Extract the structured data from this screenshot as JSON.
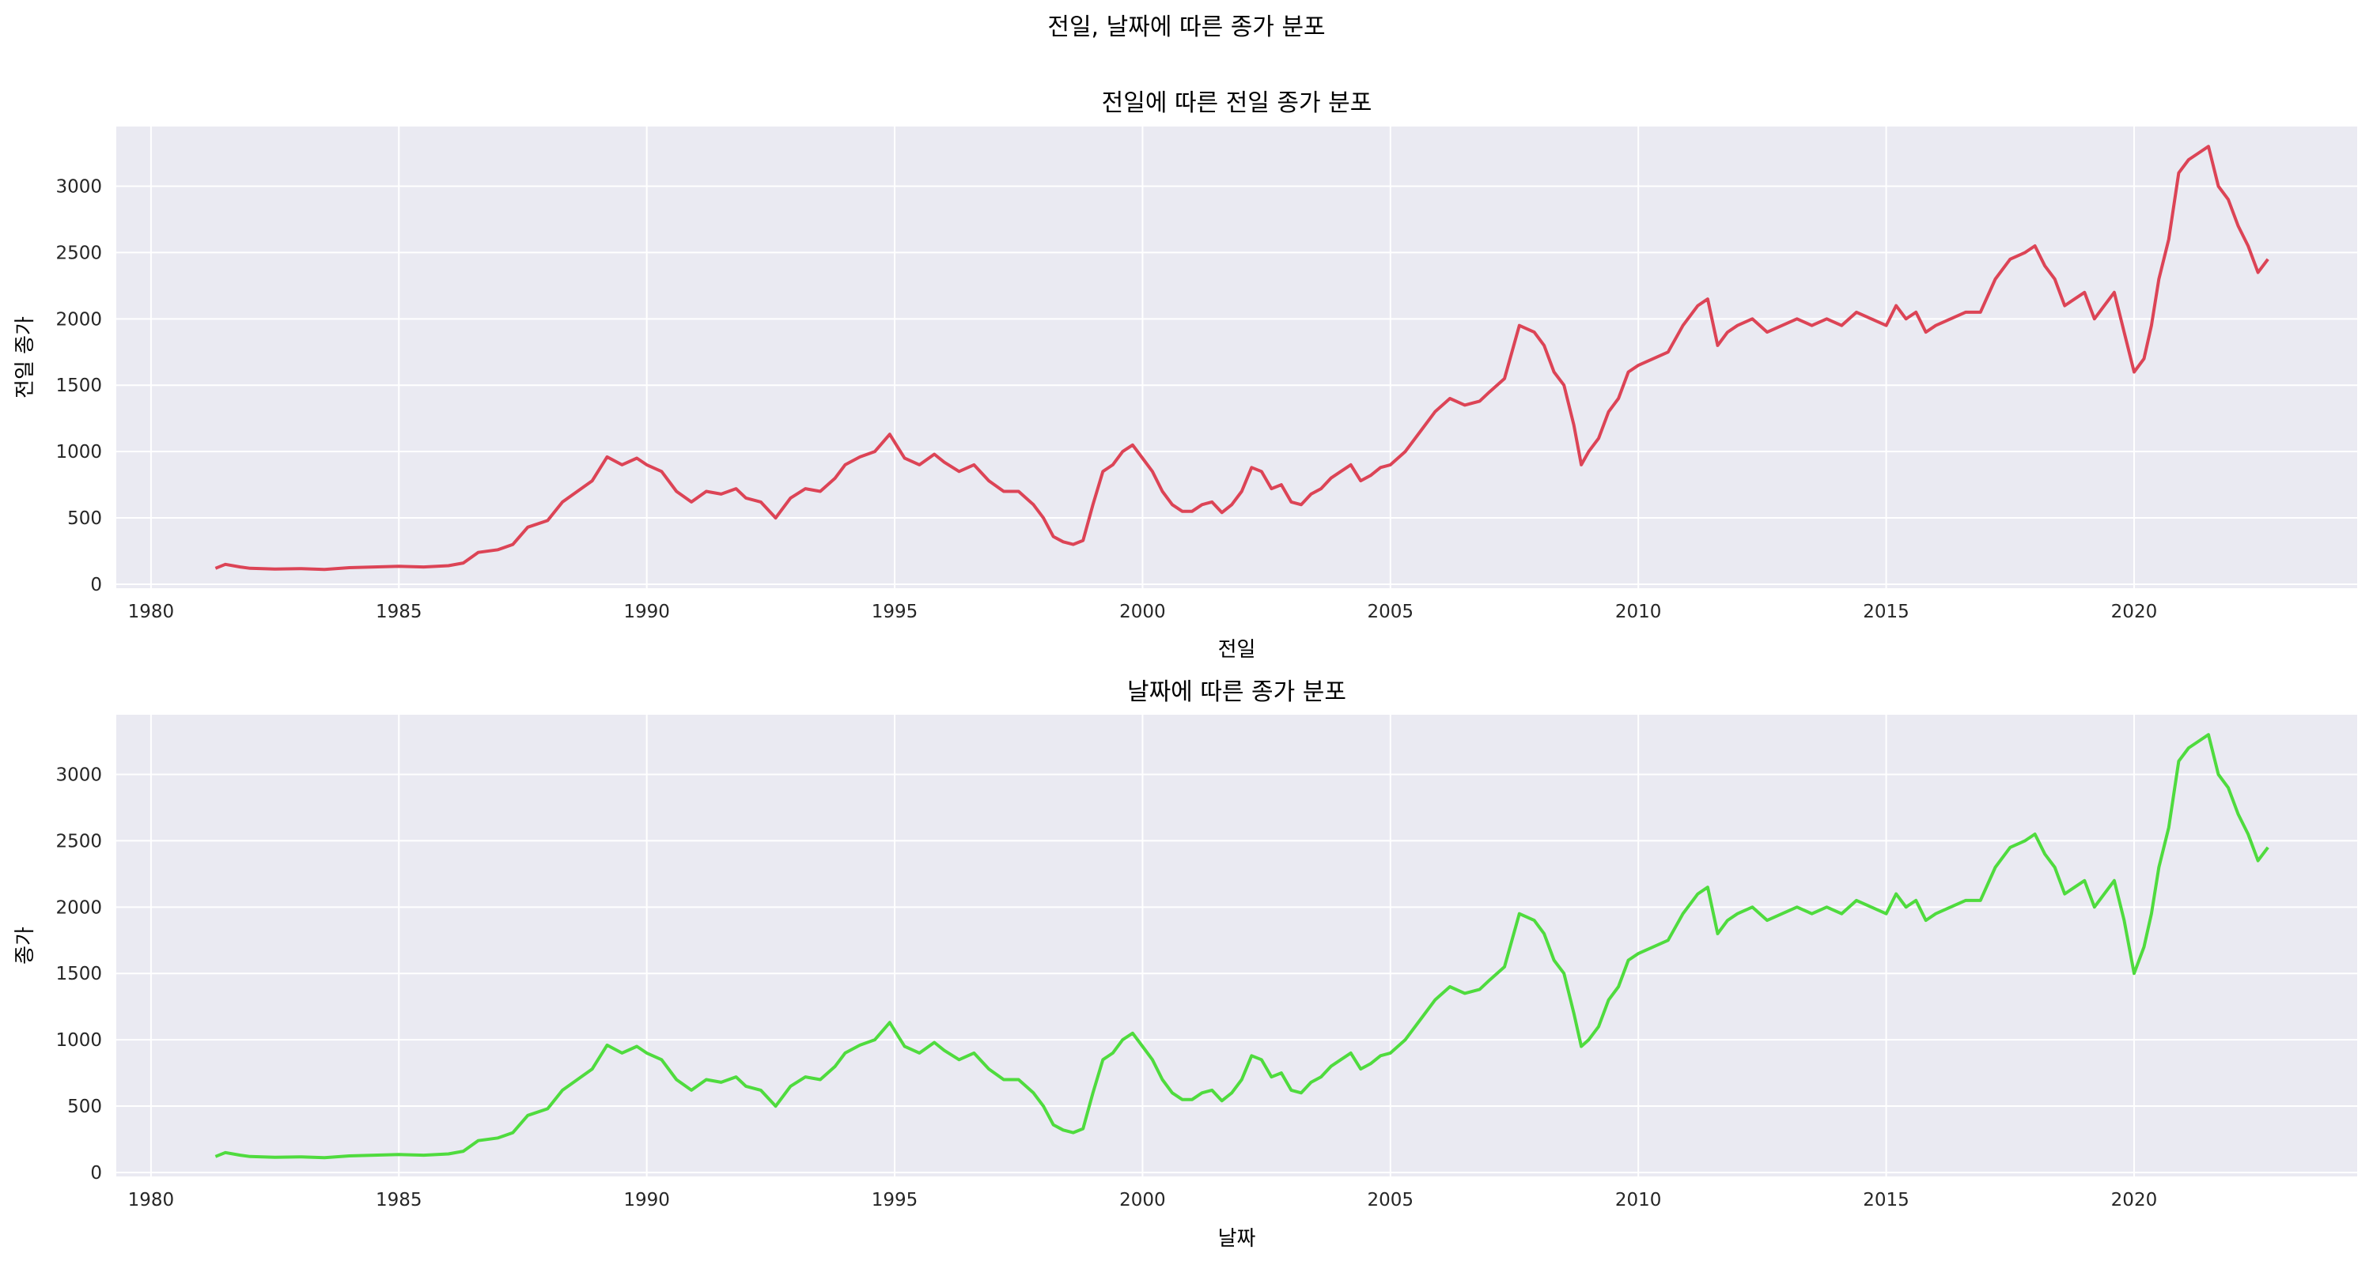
{
  "suptitle": "전일, 날짜에 따른 종가 분포",
  "chart_data": [
    {
      "type": "line",
      "title": "전일에 따른 전일 종가 분포",
      "xlabel": "전일",
      "ylabel": "전일 종가",
      "xlim": [
        1979.3,
        2024.5
      ],
      "ylim": [
        -30,
        3450
      ],
      "xticks": [
        1980,
        1985,
        1990,
        1995,
        2000,
        2005,
        2010,
        2015,
        2020
      ],
      "xtick_labels": [
        "1980",
        "1985",
        "1990",
        "1995",
        "2000",
        "2005",
        "2010",
        "2015",
        "2020"
      ],
      "yticks": [
        0,
        500,
        1000,
        1500,
        2000,
        2500,
        3000
      ],
      "ytick_labels": [
        "0",
        "500",
        "1000",
        "1500",
        "2000",
        "2500",
        "3000"
      ],
      "grid": true,
      "series": [
        {
          "color": "#dc4456",
          "x": [
            1981.3,
            1981.5,
            1981.8,
            1982.0,
            1982.5,
            1983.0,
            1983.5,
            1984.0,
            1984.5,
            1985.0,
            1985.5,
            1986.0,
            1986.3,
            1986.6,
            1987.0,
            1987.3,
            1987.6,
            1988.0,
            1988.3,
            1988.6,
            1988.9,
            1989.2,
            1989.5,
            1989.8,
            1990.0,
            1990.3,
            1990.6,
            1990.9,
            1991.2,
            1991.5,
            1991.8,
            1992.0,
            1992.3,
            1992.6,
            1992.9,
            1993.2,
            1993.5,
            1993.8,
            1994.0,
            1994.3,
            1994.6,
            1994.9,
            1995.2,
            1995.5,
            1995.8,
            1996.0,
            1996.3,
            1996.6,
            1996.9,
            1997.2,
            1997.5,
            1997.8,
            1998.0,
            1998.2,
            1998.4,
            1998.6,
            1998.8,
            1999.0,
            1999.2,
            1999.4,
            1999.6,
            1999.8,
            2000.0,
            2000.2,
            2000.4,
            2000.6,
            2000.8,
            2001.0,
            2001.2,
            2001.4,
            2001.6,
            2001.8,
            2002.0,
            2002.2,
            2002.4,
            2002.6,
            2002.8,
            2003.0,
            2003.2,
            2003.4,
            2003.6,
            2003.8,
            2004.0,
            2004.2,
            2004.4,
            2004.6,
            2004.8,
            2005.0,
            2005.3,
            2005.6,
            2005.9,
            2006.2,
            2006.5,
            2006.8,
            2007.0,
            2007.3,
            2007.6,
            2007.9,
            2008.1,
            2008.3,
            2008.5,
            2008.7,
            2008.85,
            2009.0,
            2009.2,
            2009.4,
            2009.6,
            2009.8,
            2010.0,
            2010.3,
            2010.6,
            2010.9,
            2011.2,
            2011.4,
            2011.6,
            2011.8,
            2012.0,
            2012.3,
            2012.6,
            2012.9,
            2013.2,
            2013.5,
            2013.8,
            2014.1,
            2014.4,
            2014.7,
            2015.0,
            2015.2,
            2015.4,
            2015.6,
            2015.8,
            2016.0,
            2016.3,
            2016.6,
            2016.9,
            2017.2,
            2017.5,
            2017.8,
            2018.0,
            2018.2,
            2018.4,
            2018.6,
            2018.8,
            2019.0,
            2019.2,
            2019.4,
            2019.6,
            2019.8,
            2020.0,
            2020.2,
            2020.35,
            2020.5,
            2020.7,
            2020.9,
            2021.1,
            2021.3,
            2021.5,
            2021.7,
            2021.9,
            2022.1,
            2022.3,
            2022.5,
            2022.7
          ],
          "y": [
            120,
            150,
            130,
            120,
            115,
            118,
            112,
            125,
            130,
            135,
            130,
            140,
            160,
            240,
            260,
            300,
            430,
            480,
            620,
            700,
            780,
            960,
            900,
            950,
            900,
            850,
            700,
            620,
            700,
            680,
            720,
            650,
            620,
            500,
            650,
            720,
            700,
            800,
            900,
            960,
            1000,
            1130,
            950,
            900,
            980,
            920,
            850,
            900,
            780,
            700,
            700,
            600,
            500,
            360,
            320,
            300,
            330,
            600,
            850,
            900,
            1000,
            1050,
            950,
            850,
            700,
            600,
            550,
            550,
            600,
            620,
            540,
            600,
            700,
            880,
            850,
            720,
            750,
            620,
            600,
            680,
            720,
            800,
            850,
            900,
            780,
            820,
            880,
            900,
            1000,
            1150,
            1300,
            1400,
            1350,
            1380,
            1450,
            1550,
            1950,
            1900,
            1800,
            1600,
            1500,
            1200,
            900,
            1000,
            1100,
            1300,
            1400,
            1600,
            1650,
            1700,
            1750,
            1950,
            2100,
            2150,
            1800,
            1900,
            1950,
            2000,
            1900,
            1950,
            2000,
            1950,
            2000,
            1950,
            2050,
            2000,
            1950,
            2100,
            2000,
            2050,
            1900,
            1950,
            2000,
            2050,
            2050,
            2300,
            2450,
            2500,
            2550,
            2400,
            2300,
            2100,
            2150,
            2200,
            2000,
            2100,
            2200,
            1900,
            1600,
            1700,
            1950,
            2300,
            2600,
            3100,
            3200,
            3250,
            3300,
            3000,
            2900,
            2700,
            2550,
            2350,
            2450
          ]
        }
      ]
    },
    {
      "type": "line",
      "title": "날짜에 따른 종가 분포",
      "xlabel": "날짜",
      "ylabel": "종가",
      "xlim": [
        1979.3,
        2024.5
      ],
      "ylim": [
        -30,
        3450
      ],
      "xticks": [
        1980,
        1985,
        1990,
        1995,
        2000,
        2005,
        2010,
        2015,
        2020
      ],
      "xtick_labels": [
        "1980",
        "1985",
        "1990",
        "1995",
        "2000",
        "2005",
        "2010",
        "2015",
        "2020"
      ],
      "yticks": [
        0,
        500,
        1000,
        1500,
        2000,
        2500,
        3000
      ],
      "ytick_labels": [
        "0",
        "500",
        "1000",
        "1500",
        "2000",
        "2500",
        "3000"
      ],
      "grid": true,
      "series": [
        {
          "color": "#4fdb3e",
          "x": [
            1981.3,
            1981.5,
            1981.8,
            1982.0,
            1982.5,
            1983.0,
            1983.5,
            1984.0,
            1984.5,
            1985.0,
            1985.5,
            1986.0,
            1986.3,
            1986.6,
            1987.0,
            1987.3,
            1987.6,
            1988.0,
            1988.3,
            1988.6,
            1988.9,
            1989.2,
            1989.5,
            1989.8,
            1990.0,
            1990.3,
            1990.6,
            1990.9,
            1991.2,
            1991.5,
            1991.8,
            1992.0,
            1992.3,
            1992.6,
            1992.9,
            1993.2,
            1993.5,
            1993.8,
            1994.0,
            1994.3,
            1994.6,
            1994.9,
            1995.2,
            1995.5,
            1995.8,
            1996.0,
            1996.3,
            1996.6,
            1996.9,
            1997.2,
            1997.5,
            1997.8,
            1998.0,
            1998.2,
            1998.4,
            1998.6,
            1998.8,
            1999.0,
            1999.2,
            1999.4,
            1999.6,
            1999.8,
            2000.0,
            2000.2,
            2000.4,
            2000.6,
            2000.8,
            2001.0,
            2001.2,
            2001.4,
            2001.6,
            2001.8,
            2002.0,
            2002.2,
            2002.4,
            2002.6,
            2002.8,
            2003.0,
            2003.2,
            2003.4,
            2003.6,
            2003.8,
            2004.0,
            2004.2,
            2004.4,
            2004.6,
            2004.8,
            2005.0,
            2005.3,
            2005.6,
            2005.9,
            2006.2,
            2006.5,
            2006.8,
            2007.0,
            2007.3,
            2007.6,
            2007.9,
            2008.1,
            2008.3,
            2008.5,
            2008.7,
            2008.85,
            2009.0,
            2009.2,
            2009.4,
            2009.6,
            2009.8,
            2010.0,
            2010.3,
            2010.6,
            2010.9,
            2011.2,
            2011.4,
            2011.6,
            2011.8,
            2012.0,
            2012.3,
            2012.6,
            2012.9,
            2013.2,
            2013.5,
            2013.8,
            2014.1,
            2014.4,
            2014.7,
            2015.0,
            2015.2,
            2015.4,
            2015.6,
            2015.8,
            2016.0,
            2016.3,
            2016.6,
            2016.9,
            2017.2,
            2017.5,
            2017.8,
            2018.0,
            2018.2,
            2018.4,
            2018.6,
            2018.8,
            2019.0,
            2019.2,
            2019.4,
            2019.6,
            2019.8,
            2020.0,
            2020.2,
            2020.35,
            2020.5,
            2020.7,
            2020.9,
            2021.1,
            2021.3,
            2021.5,
            2021.7,
            2021.9,
            2022.1,
            2022.3,
            2022.5,
            2022.7
          ],
          "y": [
            120,
            150,
            130,
            120,
            115,
            118,
            112,
            125,
            130,
            135,
            130,
            140,
            160,
            240,
            260,
            300,
            430,
            480,
            620,
            700,
            780,
            960,
            900,
            950,
            900,
            850,
            700,
            620,
            700,
            680,
            720,
            650,
            620,
            500,
            650,
            720,
            700,
            800,
            900,
            960,
            1000,
            1130,
            950,
            900,
            980,
            920,
            850,
            900,
            780,
            700,
            700,
            600,
            500,
            360,
            320,
            300,
            330,
            600,
            850,
            900,
            1000,
            1050,
            950,
            850,
            700,
            600,
            550,
            550,
            600,
            620,
            540,
            600,
            700,
            880,
            850,
            720,
            750,
            620,
            600,
            680,
            720,
            800,
            850,
            900,
            780,
            820,
            880,
            900,
            1000,
            1150,
            1300,
            1400,
            1350,
            1380,
            1450,
            1550,
            1950,
            1900,
            1800,
            1600,
            1500,
            1200,
            950,
            1000,
            1100,
            1300,
            1400,
            1600,
            1650,
            1700,
            1750,
            1950,
            2100,
            2150,
            1800,
            1900,
            1950,
            2000,
            1900,
            1950,
            2000,
            1950,
            2000,
            1950,
            2050,
            2000,
            1950,
            2100,
            2000,
            2050,
            1900,
            1950,
            2000,
            2050,
            2050,
            2300,
            2450,
            2500,
            2550,
            2400,
            2300,
            2100,
            2150,
            2200,
            2000,
            2100,
            2200,
            1900,
            1500,
            1700,
            1950,
            2300,
            2600,
            3100,
            3200,
            3250,
            3300,
            3000,
            2900,
            2700,
            2550,
            2350,
            2450
          ]
        }
      ]
    }
  ]
}
